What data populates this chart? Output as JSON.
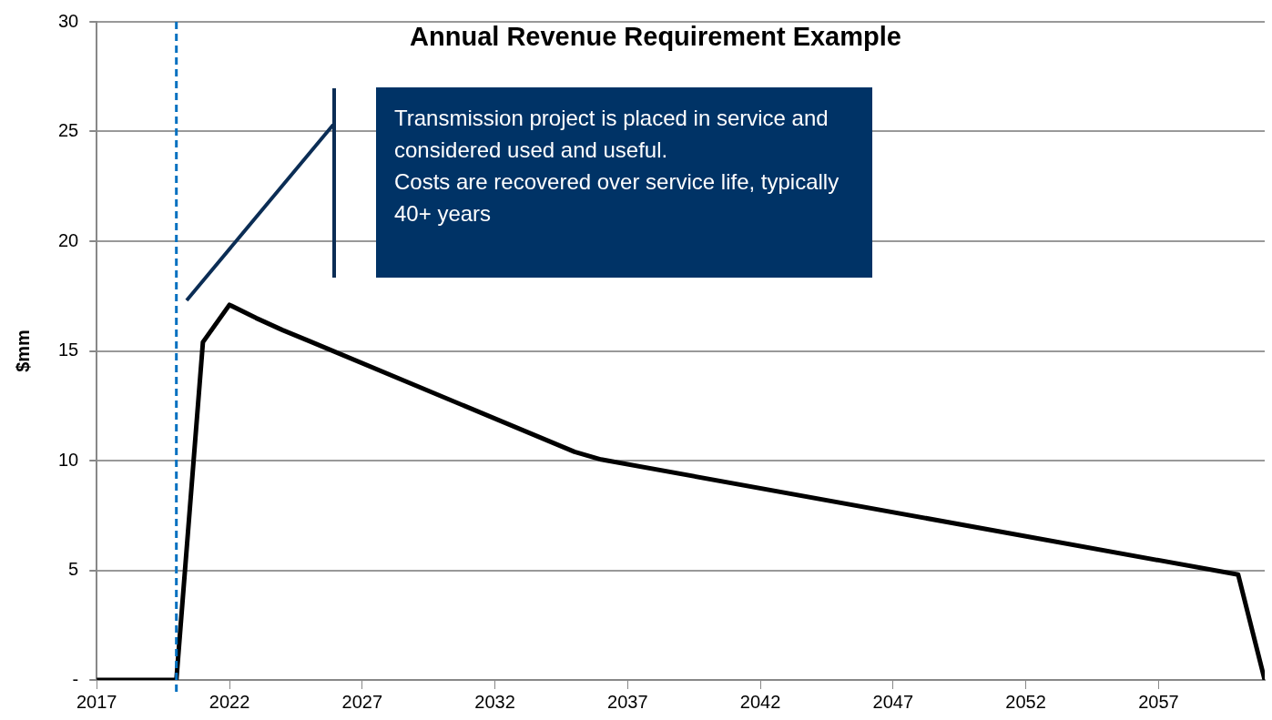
{
  "chart_data": {
    "type": "line",
    "title": "Annual Revenue Requirement Example",
    "ylabel": "$mm",
    "x": [
      2017,
      2020,
      2021,
      2022,
      2023,
      2024,
      2025,
      2035,
      2036,
      2060,
      2061
    ],
    "series": [
      {
        "color": "#000000",
        "values": [
          0,
          0,
          15.4,
          17.1,
          16.5,
          15.95,
          15.45,
          10.4,
          10.05,
          4.8,
          0
        ]
      }
    ],
    "xlim": [
      2017,
      2061
    ],
    "xticks": [
      2017,
      2022,
      2027,
      2032,
      2037,
      2042,
      2047,
      2052,
      2057
    ],
    "ylim": [
      0,
      30
    ],
    "yticks": [
      {
        "value": 0,
        "label": "-"
      },
      5,
      10,
      15,
      20,
      25,
      30
    ],
    "grid": "y",
    "legend": false,
    "marker": "none",
    "line_style": "solid",
    "ref_lines": [
      {
        "axis": "x",
        "value": 2020,
        "color": "#0070c0",
        "line_style": "dashed"
      }
    ],
    "annotations": [
      "Transmission project is placed in service and considered used and useful.\nCosts are recovered over service life, typically 40+ years"
    ]
  }
}
